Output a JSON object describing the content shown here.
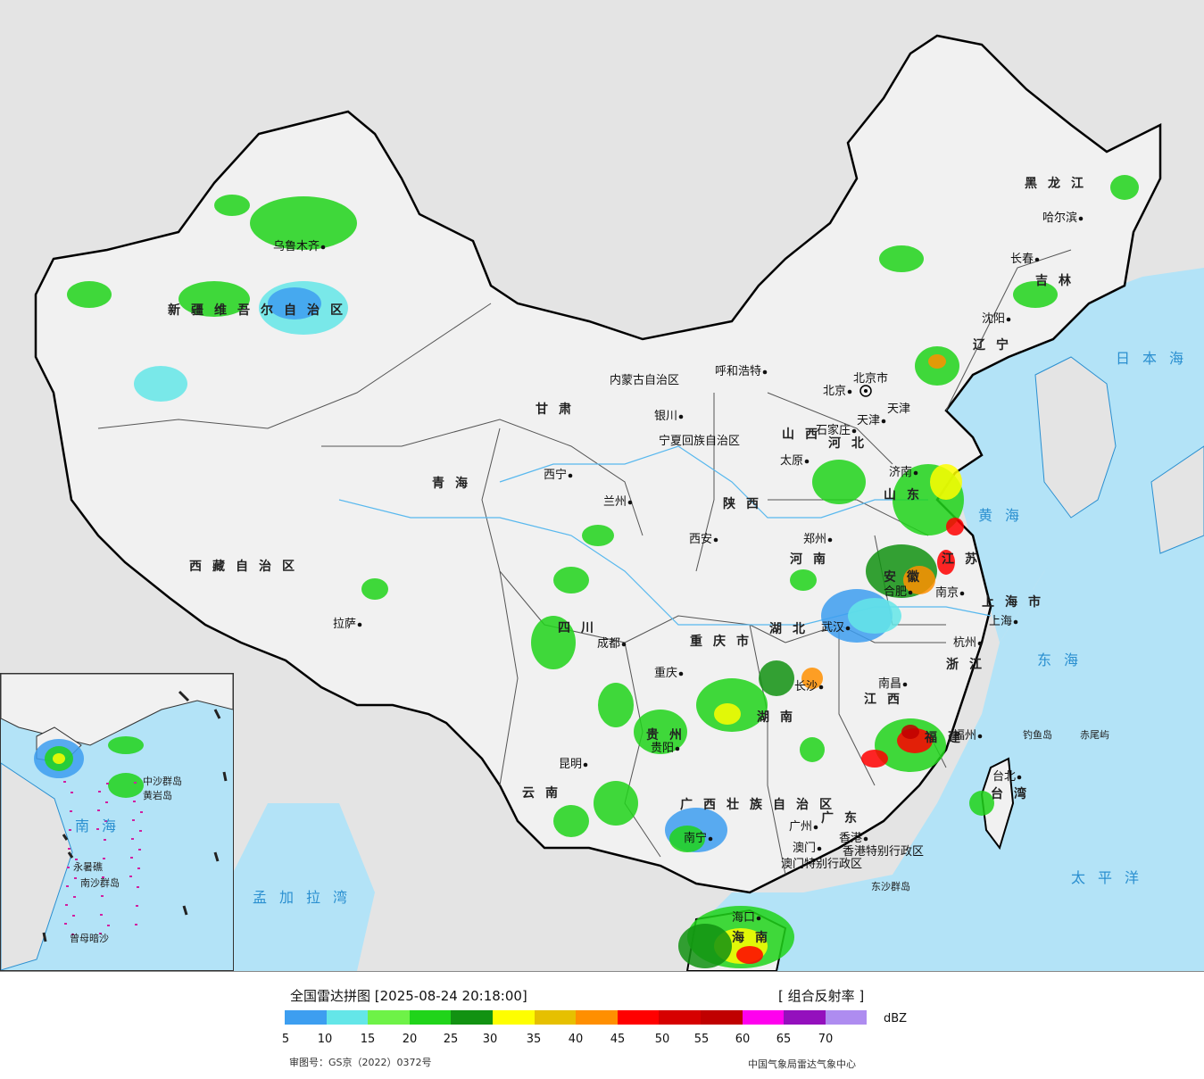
{
  "legend": {
    "title": "全国雷达拼图 [2025-08-24 20:18:00]",
    "product": "[ 组合反射率 ]",
    "unit": "dBZ",
    "ticks": [
      "5",
      "10",
      "15",
      "20",
      "25",
      "30",
      "35",
      "40",
      "45",
      "50",
      "55",
      "60",
      "65",
      "70"
    ],
    "colors": [
      "#3d9ef0",
      "#64e6e8",
      "#6ef247",
      "#20d41a",
      "#129212",
      "#fefe00",
      "#e6c000",
      "#ff8f00",
      "#ff0000",
      "#d60000",
      "#c00000",
      "#ff00ee",
      "#9410bd",
      "#ae8cf0"
    ],
    "approval": "审图号：GS京（2022）0372号",
    "source": "中国气象局雷达气象中心"
  },
  "colors": {
    "sea": "#b3e3f7",
    "land": "#f1f1f1",
    "outside": "#e4e4e4",
    "border": "#000000"
  },
  "provinces": [
    "黑龙江",
    "吉林",
    "辽宁",
    "新疆维吾尔自治区",
    "西藏自治区",
    "青海",
    "甘肃",
    "四川",
    "云南",
    "贵州",
    "湖南",
    "湖北",
    "河南",
    "河北",
    "山西",
    "陕西",
    "山东",
    "江苏",
    "安徽",
    "浙江",
    "江西",
    "福建",
    "广东",
    "台湾",
    "海南",
    "内蒙古自治区",
    "宁夏回族自治区",
    "广西壮族自治区",
    "重庆市",
    "北京市",
    "天津",
    "上海市",
    "香港特别行政区",
    "澳门特别行政区"
  ],
  "cities": [
    "哈尔滨",
    "长春",
    "沈阳",
    "乌鲁木齐",
    "呼和浩特",
    "北京",
    "天津",
    "石家庄",
    "太原",
    "济南",
    "郑州",
    "西安",
    "银川",
    "兰州",
    "西宁",
    "拉萨",
    "成都",
    "重庆",
    "贵阳",
    "昆明",
    "长沙",
    "武汉",
    "合肥",
    "南京",
    "上海",
    "杭州",
    "南昌",
    "福州",
    "台北",
    "广州",
    "澳门",
    "香港",
    "南宁",
    "海口"
  ],
  "seas": [
    "日本海",
    "黄海",
    "东海",
    "太平洋",
    "南海",
    "孟加拉湾"
  ],
  "islands": [
    "钓鱼岛",
    "赤尾屿",
    "东沙群岛",
    "中沙群岛",
    "黄岩岛",
    "永暑礁",
    "南沙群岛",
    "曾母暗沙"
  ]
}
